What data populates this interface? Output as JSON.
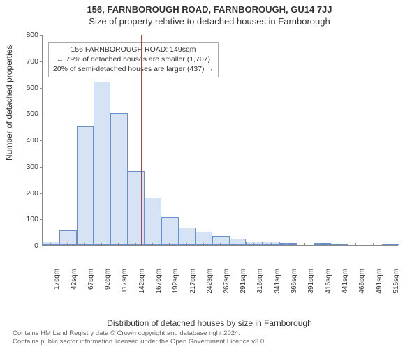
{
  "header": {
    "title1": "156, FARNBOROUGH ROAD, FARNBOROUGH, GU14 7JJ",
    "title2": "Size of property relative to detached houses in Farnborough"
  },
  "annotation": {
    "line1": "156 FARNBOROUGH ROAD: 149sqm",
    "line2": "← 79% of detached houses are smaller (1,707)",
    "line3": "20% of semi-detached houses are larger (437) →",
    "box_border_color": "#aaaaaa",
    "font_size": 10.5
  },
  "chart": {
    "type": "histogram",
    "x_axis_label": "Distribution of detached houses by size in Farnborough",
    "y_axis_label": "Number of detached properties",
    "xlim": [
      17,
      516
    ],
    "ylim": [
      0,
      800
    ],
    "ytick_step": 100,
    "x_tick_labels": [
      "17sqm",
      "42sqm",
      "67sqm",
      "92sqm",
      "117sqm",
      "142sqm",
      "167sqm",
      "192sqm",
      "217sqm",
      "242sqm",
      "267sqm",
      "291sqm",
      "316sqm",
      "341sqm",
      "366sqm",
      "391sqm",
      "416sqm",
      "441sqm",
      "466sqm",
      "491sqm",
      "516sqm"
    ],
    "bin_centers": [
      17,
      42,
      67,
      92,
      117,
      142,
      167,
      192,
      217,
      242,
      267,
      291,
      316,
      341,
      366,
      391,
      416,
      441,
      466,
      491,
      516
    ],
    "values": [
      12,
      55,
      450,
      620,
      500,
      280,
      180,
      105,
      65,
      50,
      35,
      25,
      12,
      12,
      8,
      0,
      8,
      5,
      0,
      0,
      5
    ],
    "bar_fill": "#d6e3f5",
    "bar_border": "#6b8fc9",
    "axis_color": "#888888",
    "reference_line": {
      "x": 149,
      "color": "#d33333"
    },
    "background": "#ffffff",
    "label_fontsize": 12,
    "tick_fontsize": 10.5
  },
  "footer": {
    "line1": "Contains HM Land Registry data © Crown copyright and database right 2024.",
    "line2": "Contains public sector information licensed under the Open Government Licence v3.0."
  }
}
